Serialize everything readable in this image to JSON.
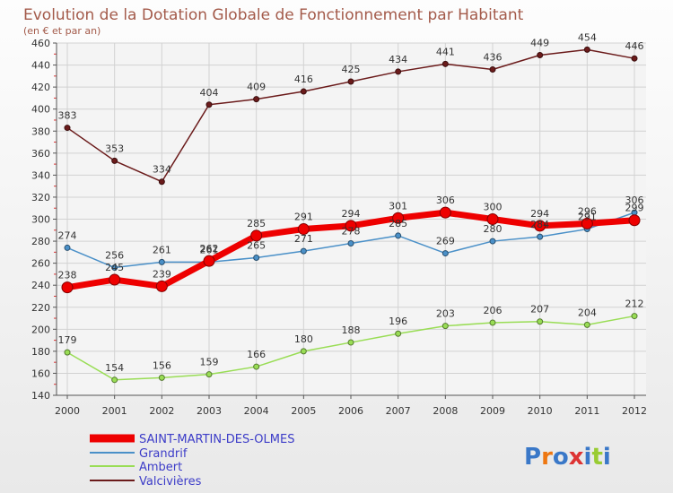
{
  "chart_data": {
    "type": "line",
    "title": "Evolution de la Dotation Globale de Fonctionnement par Habitant",
    "subtitle": "(en € et par an)",
    "x": [
      "2000",
      "2001",
      "2002",
      "2003",
      "2004",
      "2005",
      "2006",
      "2007",
      "2008",
      "2009",
      "2010",
      "2011",
      "2012"
    ],
    "ylim": [
      140,
      460
    ],
    "yticks": [
      140,
      160,
      180,
      200,
      220,
      240,
      260,
      280,
      300,
      320,
      340,
      360,
      380,
      400,
      420,
      440,
      460
    ],
    "grid": true,
    "legend_position": "bottom-left",
    "series": [
      {
        "name": "SAINT-MARTIN-DES-OLMES",
        "color": "#ee0000",
        "values": [
          238,
          245,
          239,
          262,
          285,
          291,
          294,
          301,
          306,
          300,
          294,
          296,
          299
        ]
      },
      {
        "name": "Grandrif",
        "color": "#4a90c8",
        "values": [
          274,
          256,
          261,
          261,
          265,
          271,
          278,
          285,
          269,
          280,
          284,
          291,
          306
        ]
      },
      {
        "name": "Ambert",
        "color": "#99dd55",
        "values": [
          179,
          154,
          156,
          159,
          166,
          180,
          188,
          196,
          203,
          206,
          207,
          204,
          212
        ]
      },
      {
        "name": "Valcivières",
        "color": "#6b1b1b",
        "values": [
          383,
          353,
          334,
          404,
          409,
          416,
          425,
          434,
          441,
          436,
          449,
          454,
          446
        ]
      }
    ]
  },
  "logo": {
    "text": "Proxiti"
  }
}
